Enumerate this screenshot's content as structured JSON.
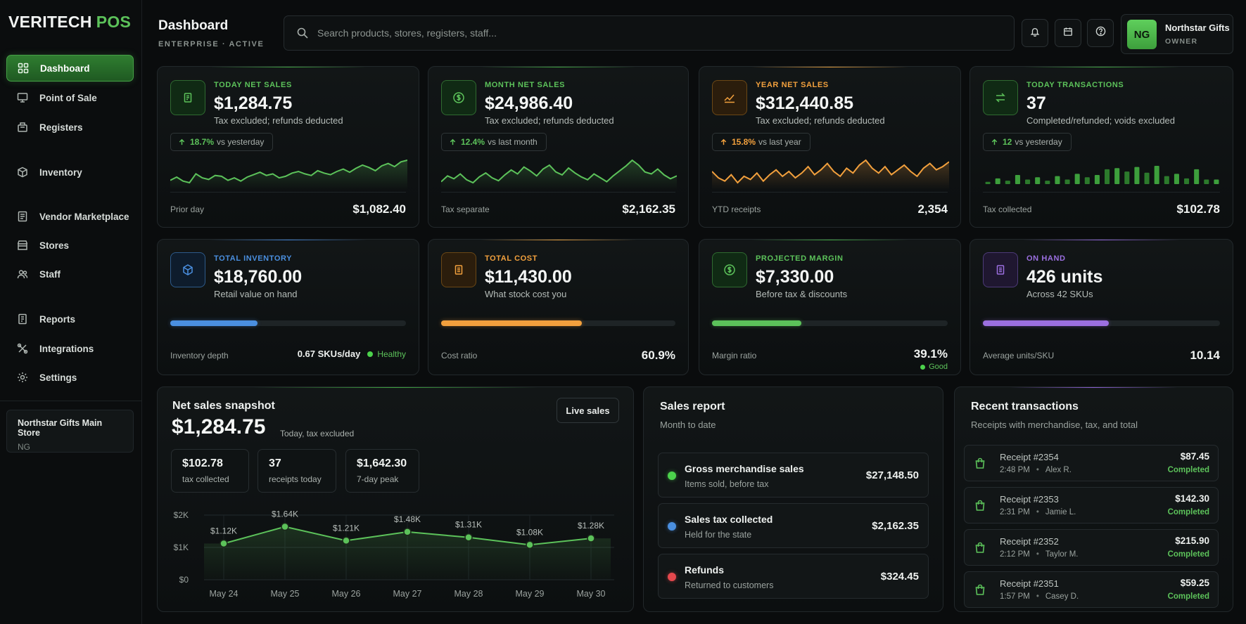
{
  "brand": {
    "name": "VERITECH",
    "suffix": "POS"
  },
  "sidebar": {
    "items": [
      {
        "label": "Dashboard",
        "icon": "dashboard-icon",
        "active": true
      },
      {
        "label": "Point of Sale",
        "icon": "monitor-icon"
      },
      {
        "label": "Registers",
        "icon": "register-icon"
      },
      {
        "label": "Inventory",
        "icon": "box-icon"
      },
      {
        "label": "Vendor Marketplace",
        "icon": "marketplace-icon"
      },
      {
        "label": "Stores",
        "icon": "store-icon"
      },
      {
        "label": "Staff",
        "icon": "users-icon"
      },
      {
        "label": "Reports",
        "icon": "report-icon"
      },
      {
        "label": "Integrations",
        "icon": "integrations-icon"
      },
      {
        "label": "Settings",
        "icon": "gear-icon"
      }
    ],
    "store": {
      "name": "Northstar Gifts Main Store",
      "initials": "NG"
    }
  },
  "header": {
    "title": "Dashboard",
    "subtitle": "ENTERPRISE · ACTIVE",
    "search_placeholder": "Search products, stores, registers, staff...",
    "user": {
      "initials": "NG",
      "name": "Northstar Gifts",
      "role": "OWNER"
    }
  },
  "kpis": [
    {
      "label": "TODAY NET SALES",
      "value": "$1,284.75",
      "sub": "Tax excluded; refunds deducted",
      "delta": "18.7%",
      "delta_text": "vs yesterday",
      "foot_label": "Prior day",
      "foot_value": "$1,082.40",
      "color": "#5cc25a",
      "sparkline": [
        30,
        34,
        29,
        27,
        38,
        33,
        31,
        36,
        35,
        30,
        33,
        29,
        34,
        37,
        40,
        36,
        38,
        33,
        35,
        39,
        41,
        38,
        36,
        42,
        39,
        37,
        41,
        44,
        40,
        45,
        49,
        46,
        42,
        48,
        51,
        47,
        53,
        55
      ]
    },
    {
      "label": "MONTH NET SALES",
      "value": "$24,986.40",
      "sub": "Tax excluded; refunds deducted",
      "delta": "12.4%",
      "delta_text": "vs last month",
      "foot_label": "Tax separate",
      "foot_value": "$2,162.35",
      "color": "#5cc25a",
      "sparkline": [
        30,
        36,
        33,
        38,
        32,
        29,
        35,
        39,
        34,
        31,
        37,
        42,
        38,
        45,
        41,
        36,
        43,
        47,
        40,
        37,
        44,
        39,
        35,
        32,
        38,
        34,
        30,
        36,
        41,
        46,
        52,
        47,
        40,
        38,
        43,
        37,
        33,
        36
      ]
    },
    {
      "label": "YEAR NET SALES",
      "value": "$312,440.85",
      "sub": "Tax excluded; refunds deducted",
      "delta": "15.8%",
      "delta_text": "vs last year",
      "foot_label": "YTD receipts",
      "foot_value": "2,354",
      "color": "#f2a03d",
      "sparkline": [
        40,
        36,
        34,
        38,
        33,
        37,
        35,
        39,
        34,
        38,
        41,
        37,
        40,
        36,
        39,
        43,
        38,
        41,
        45,
        40,
        37,
        42,
        39,
        44,
        47,
        42,
        39,
        43,
        38,
        41,
        44,
        40,
        37,
        42,
        45,
        41,
        43,
        46
      ]
    },
    {
      "label": "TODAY TRANSACTIONS",
      "value": "37",
      "sub": "Completed/refunded; voids excluded",
      "delta": "12",
      "delta_text": "vs yesterday",
      "foot_label": "Tax collected",
      "foot_value": "$102.78",
      "color": "#5cc25a",
      "bars": [
        2,
        5,
        3,
        8,
        4,
        6,
        3,
        7,
        4,
        9,
        6,
        8,
        13,
        14,
        11,
        15,
        10,
        16,
        7,
        9,
        5,
        13,
        4,
        4
      ]
    }
  ],
  "stats": [
    {
      "label": "TOTAL INVENTORY",
      "value": "$18,760.00",
      "sub": "Retail value on hand",
      "foot_label": "Inventory depth",
      "foot_value": "0.67 SKUs/day",
      "status": "Healthy",
      "progress": 0.37,
      "color": "#4a8fe0"
    },
    {
      "label": "TOTAL COST",
      "value": "$11,430.00",
      "sub": "What stock cost you",
      "foot_label": "Cost ratio",
      "foot_value": "60.9%",
      "progress": 0.6,
      "color": "#f2a03d"
    },
    {
      "label": "PROJECTED MARGIN",
      "value": "$7,330.00",
      "sub": "Before tax & discounts",
      "foot_label": "Margin ratio",
      "foot_value": "39.1%",
      "status": "Good",
      "progress": 0.38,
      "color": "#5cc25a"
    },
    {
      "label": "ON HAND",
      "value": "426 units",
      "sub": "Across 42 SKUs",
      "foot_label": "Average units/SKU",
      "foot_value": "10.14",
      "progress": 0.53,
      "color": "#9b6fe0"
    }
  ],
  "snapshot": {
    "title": "Net sales snapshot",
    "value": "$1,284.75",
    "value_note": "Today, tax excluded",
    "live_button": "Live sales",
    "minis": [
      {
        "value": "$102.78",
        "label": "tax collected"
      },
      {
        "value": "37",
        "label": "receipts today"
      },
      {
        "value": "$1,642.30",
        "label": "7-day peak"
      }
    ]
  },
  "chart_data": {
    "type": "line",
    "categories": [
      "May 24",
      "May 25",
      "May 26",
      "May 27",
      "May 28",
      "May 29",
      "May 30"
    ],
    "values": [
      1120,
      1640,
      1210,
      1480,
      1310,
      1080,
      1280
    ],
    "data_labels": [
      "$1.12K",
      "$1.64K",
      "$1.21K",
      "$1.48K",
      "$1.31K",
      "$1.08K",
      "$1.28K"
    ],
    "y_ticks": [
      "$2K",
      "$1K",
      "$0"
    ],
    "ylim": [
      0,
      2000
    ],
    "grid": true,
    "color": "#5cc25a"
  },
  "sales_report": {
    "title": "Sales report",
    "subtitle": "Month to date",
    "rows": [
      {
        "title": "Gross merchandise sales",
        "sub": "Items sold, before tax",
        "value": "$27,148.50",
        "color": "#4cd24c"
      },
      {
        "title": "Sales tax collected",
        "sub": "Held for the state",
        "value": "$2,162.35",
        "color": "#4a8fe0"
      },
      {
        "title": "Refunds",
        "sub": "Returned to customers",
        "value": "$324.45",
        "color": "#e5484d"
      }
    ]
  },
  "transactions": {
    "title": "Recent transactions",
    "subtitle": "Receipts with merchandise, tax, and total",
    "rows": [
      {
        "receipt": "Receipt #2354",
        "time": "2:48 PM",
        "staff": "Alex R.",
        "amount": "$87.45",
        "status": "Completed"
      },
      {
        "receipt": "Receipt #2353",
        "time": "2:31 PM",
        "staff": "Jamie L.",
        "amount": "$142.30",
        "status": "Completed"
      },
      {
        "receipt": "Receipt #2352",
        "time": "2:12 PM",
        "staff": "Taylor M.",
        "amount": "$215.90",
        "status": "Completed"
      },
      {
        "receipt": "Receipt #2351",
        "time": "1:57 PM",
        "staff": "Casey D.",
        "amount": "$59.25",
        "status": "Completed"
      }
    ]
  }
}
